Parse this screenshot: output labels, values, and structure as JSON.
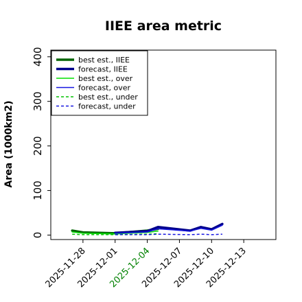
{
  "chart_data": {
    "type": "line",
    "title": "IIEE area metric",
    "xlabel": "",
    "ylabel": "Area (1000km2)",
    "xlim": [
      "2025-11-25",
      "2025-12-16"
    ],
    "ylim": [
      -10,
      415
    ],
    "yticks": [
      0,
      100,
      200,
      300,
      400
    ],
    "xticks": [
      {
        "date": "2025-11-28",
        "label": "2025-11-28",
        "color": "#000000"
      },
      {
        "date": "2025-12-01",
        "label": "2025-12-01",
        "color": "#000000"
      },
      {
        "date": "2025-12-04",
        "label": "2025-12-04",
        "color": "#008000"
      },
      {
        "date": "2025-12-07",
        "label": "2025-12-07",
        "color": "#000000"
      },
      {
        "date": "2025-12-10",
        "label": "2025-12-10",
        "color": "#000000"
      },
      {
        "date": "2025-12-13",
        "label": "2025-12-13",
        "color": "#000000"
      }
    ],
    "grid": false,
    "legend_position": "top-left",
    "series": [
      {
        "name": "best est., IIEE",
        "color": "#006400",
        "style": "solid",
        "width": 3.5,
        "x": [
          "2025-11-27",
          "2025-11-28",
          "2025-12-01",
          "2025-12-04",
          "2025-12-05"
        ],
        "y": [
          10,
          6,
          4,
          10,
          14
        ]
      },
      {
        "name": "forecast, IIEE",
        "color": "#00008b",
        "style": "solid",
        "width": 3.5,
        "x": [
          "2025-12-01",
          "2025-12-04",
          "2025-12-05",
          "2025-12-08",
          "2025-12-09",
          "2025-12-10",
          "2025-12-11"
        ],
        "y": [
          5,
          9,
          18,
          10,
          18,
          13,
          25
        ]
      },
      {
        "name": "best est., over",
        "color": "#00e000",
        "style": "solid",
        "width": 1.5,
        "x": [
          "2025-11-27",
          "2025-11-28",
          "2025-12-01",
          "2025-12-04",
          "2025-12-05"
        ],
        "y": [
          7,
          4,
          3,
          6,
          9
        ]
      },
      {
        "name": "forecast, over",
        "color": "#1515e0",
        "style": "solid",
        "width": 1.5,
        "x": [
          "2025-12-01",
          "2025-12-04",
          "2025-12-05",
          "2025-12-08",
          "2025-12-09",
          "2025-12-10",
          "2025-12-11"
        ],
        "y": [
          4,
          7,
          14,
          9,
          15,
          11,
          22
        ]
      },
      {
        "name": "best est., under",
        "color": "#00c000",
        "style": "dashed",
        "width": 1.5,
        "x": [
          "2025-11-27",
          "2025-11-28",
          "2025-12-01",
          "2025-12-04",
          "2025-12-05"
        ],
        "y": [
          2,
          1,
          1,
          2,
          3
        ]
      },
      {
        "name": "forecast, under",
        "color": "#1515e0",
        "style": "dashed",
        "width": 1.5,
        "x": [
          "2025-12-01",
          "2025-12-04",
          "2025-12-05",
          "2025-12-08",
          "2025-12-09",
          "2025-12-10",
          "2025-12-11"
        ],
        "y": [
          1,
          1,
          2,
          1,
          2,
          1,
          2
        ]
      }
    ]
  }
}
